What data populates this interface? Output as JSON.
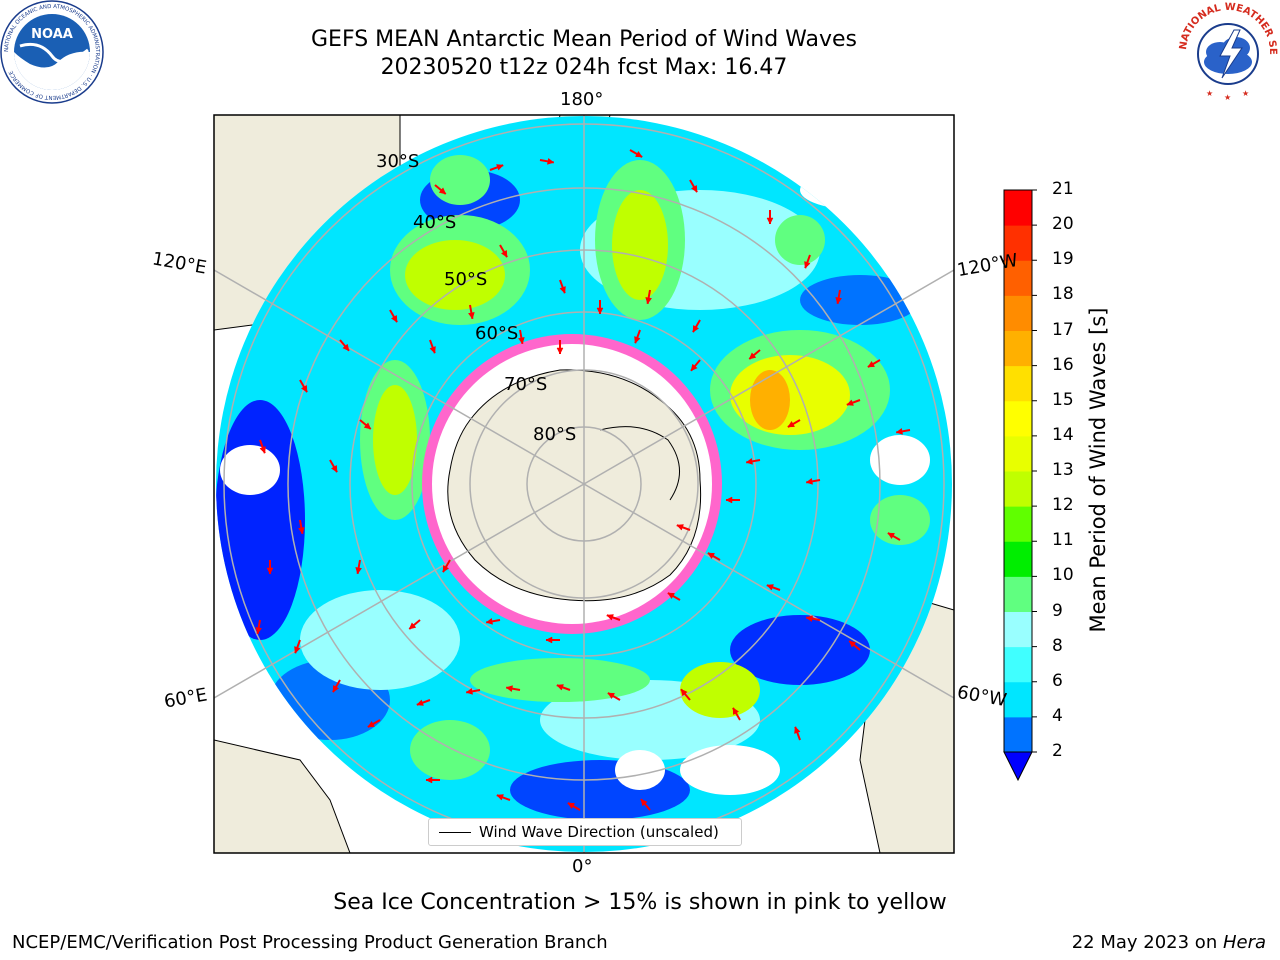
{
  "title": {
    "line1": "GEFS MEAN Antarctic Mean Period of Wind Waves",
    "line2": "20230520 t12z 024h fcst   Max: 16.47"
  },
  "map": {
    "projection": "south-polar-stereographic",
    "longitude_labels": [
      "180°",
      "120°E",
      "120°W",
      "60°E",
      "60°W",
      "0°"
    ],
    "latitude_labels": [
      "30°S",
      "40°S",
      "50°S",
      "60°S",
      "70°S",
      "80°S"
    ],
    "legend_entry": "Wind Wave Direction (unscaled)",
    "land_color": "#efecdc",
    "arrow_color": "#ff0000",
    "gridline_color": "#b0b0b0"
  },
  "colorbar": {
    "label": "Mean Period of Wind Waves [s]",
    "ticks": [
      "2",
      "4",
      "6",
      "8",
      "9",
      "10",
      "11",
      "12",
      "13",
      "14",
      "15",
      "16",
      "17",
      "18",
      "19",
      "20",
      "21"
    ],
    "levels": [
      2,
      4,
      6,
      8,
      9,
      10,
      11,
      12,
      13,
      14,
      15,
      16,
      17,
      18,
      19,
      20,
      21
    ],
    "colors": [
      "#0073ff",
      "#00e6ff",
      "#40ffff",
      "#99ffff",
      "#60ff80",
      "#00ee00",
      "#60ff00",
      "#c0ff00",
      "#e8ff00",
      "#ffff00",
      "#ffe000",
      "#ffb000",
      "#ff8c00",
      "#ff6000",
      "#ff3000",
      "#ff0000"
    ],
    "under_color": "#0000ff"
  },
  "caption": "Sea Ice Concentration > 15% is shown in pink to yellow",
  "footer": {
    "left": "NCEP/EMC/Verification Post Processing Product Generation Branch",
    "right_date": "22 May 2023 on ",
    "right_host": "Hera"
  },
  "logos": {
    "left": "NOAA",
    "left_ring": "NATIONAL OCEANIC AND ATMOSPHERIC ADMINISTRATION · U.S. DEPARTMENT OF COMMERCE",
    "right_ring": "NATIONAL WEATHER SERVICE"
  }
}
